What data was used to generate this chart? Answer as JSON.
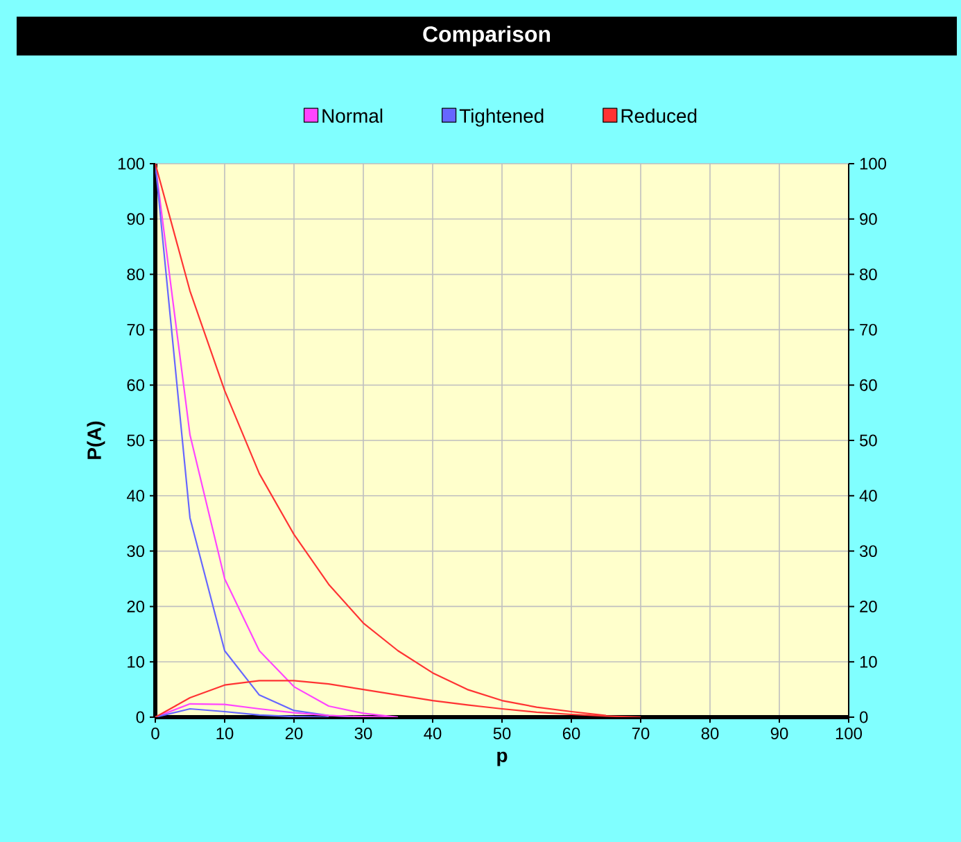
{
  "chart_data": {
    "type": "line",
    "title": "Comparison",
    "xlabel": "p",
    "ylabel": "P(A)",
    "xlim": [
      0,
      100
    ],
    "xticks": [
      0,
      10,
      20,
      30,
      40,
      50,
      60,
      70,
      80,
      90,
      100
    ],
    "ylim": [
      0,
      100
    ],
    "yticks": [
      0,
      10,
      20,
      30,
      40,
      50,
      60,
      70,
      80,
      90,
      100
    ],
    "y2lim": [
      0,
      100
    ],
    "y2ticks": [
      0,
      10,
      20,
      30,
      40,
      50,
      60,
      70,
      80,
      90,
      100
    ],
    "grid": true,
    "legend": "top",
    "marker": "none",
    "line_style": "solid",
    "series": [
      {
        "name": "Normal",
        "color": "#ff44ff",
        "x": [
          0,
          5,
          10,
          15,
          20,
          25,
          30,
          35
        ],
        "values": [
          100,
          51,
          25,
          12,
          5.5,
          2,
          0.7,
          0
        ]
      },
      {
        "name": "Tightened",
        "color": "#6666ff",
        "x": [
          0,
          5,
          10,
          15,
          20,
          25,
          30
        ],
        "values": [
          100,
          36,
          12,
          4,
          1.2,
          0.3,
          0
        ]
      },
      {
        "name": "Reduced",
        "color": "#ff3333",
        "x": [
          0,
          5,
          10,
          15,
          20,
          25,
          30,
          35,
          40,
          45,
          50,
          55,
          60,
          65
        ],
        "values": [
          100,
          77,
          59,
          44,
          33,
          24,
          17,
          12,
          8,
          5,
          3,
          1.8,
          1,
          0.3
        ]
      },
      {
        "color": "#ff44ff",
        "x": [
          0,
          5,
          10,
          15,
          20,
          25,
          30,
          35
        ],
        "values": [
          0,
          2.4,
          2.3,
          1.5,
          0.8,
          0.3,
          0.1,
          0
        ]
      },
      {
        "color": "#6666ff",
        "x": [
          0,
          5,
          10,
          15,
          20,
          25
        ],
        "values": [
          0,
          1.5,
          1,
          0.4,
          0.1,
          0
        ]
      },
      {
        "color": "#ff3333",
        "x": [
          0,
          5,
          10,
          15,
          20,
          25,
          30,
          35,
          40,
          45,
          50,
          55,
          60,
          65,
          70
        ],
        "values": [
          0,
          3.5,
          5.8,
          6.6,
          6.6,
          6,
          5,
          4,
          3,
          2.2,
          1.5,
          0.9,
          0.5,
          0.2,
          0
        ]
      }
    ]
  }
}
